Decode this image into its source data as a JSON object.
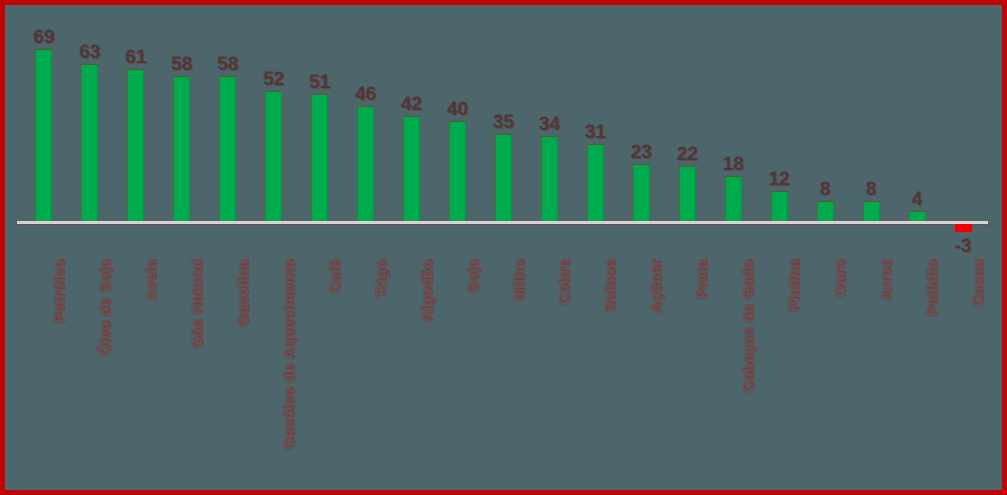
{
  "chart_data": {
    "type": "bar",
    "title": "",
    "xlabel": "",
    "ylabel": "",
    "categories": [
      "Petróleo",
      "Óleo de Soja",
      "Aveia",
      "Gás Natural",
      "Gasolina",
      "Gasóleo de Aquecimento",
      "Café",
      "Trigo",
      "Algodão",
      "Soja",
      "Milho",
      "Cobre",
      "Suínos",
      "Açúcar",
      "Prata",
      "Cabeças de Gado",
      "Platina",
      "Ouro",
      "Arroz",
      "Paládio",
      "Cacau"
    ],
    "values": [
      69,
      63,
      61,
      58,
      58,
      52,
      51,
      46,
      42,
      40,
      35,
      34,
      31,
      23,
      22,
      18,
      12,
      8,
      8,
      4,
      -3
    ],
    "ylim": [
      -10,
      75
    ],
    "grid": false,
    "legend": false,
    "value_labels_shown": true,
    "category_label_rotation_deg": -90
  },
  "style": {
    "background_color": "#4d666c",
    "frame_border_color": "#be0404",
    "positive_bar_color": "#00ab4e",
    "negative_bar_color": "#f20000",
    "axis_line_color": "#d8d2d2",
    "value_label_color": "#3f3f3f",
    "category_label_color": "#5c5a59",
    "label_glow_color": "#b90505"
  }
}
